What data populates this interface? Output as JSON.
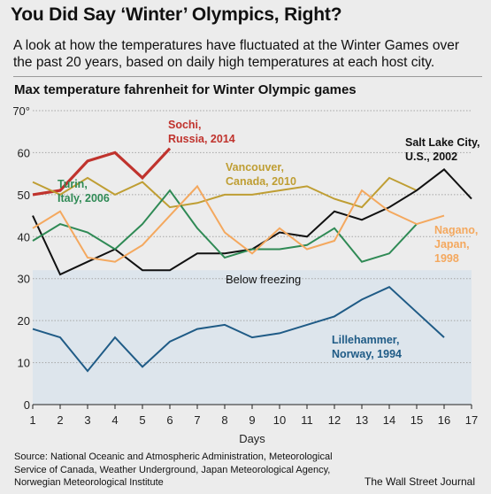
{
  "title": "You Did Say ‘Winter’ Olympics, Right?",
  "subtitle": "A look at how the temperatures have fluctuated at the Winter Games over the past 20 years, based on daily high temperatures at each host city.",
  "source": "Source: National Oceanic and Atmospheric Administration, Meteorological Service of Canada, Weather Underground, Japan Meteorological Agency, Norwegian Meteorological Institute",
  "credit": "The Wall Street Journal",
  "chart_data": {
    "type": "line",
    "title": "Max temperature fahrenheit for Winter Olympic games",
    "xlabel": "Days",
    "ylabel": "",
    "xlim": [
      1,
      17
    ],
    "ylim": [
      0,
      70
    ],
    "x_ticks": [
      "1",
      "2",
      "3",
      "4",
      "5",
      "6",
      "7",
      "8",
      "9",
      "10",
      "11",
      "12",
      "13",
      "14",
      "15",
      "16",
      "17"
    ],
    "y_ticks": [
      "0",
      "10",
      "20",
      "30",
      "40",
      "50",
      "60",
      "70°"
    ],
    "grid": true,
    "legend": "none",
    "band": {
      "label": "Below freezing",
      "from": 0,
      "to": 32,
      "color": "#dde5ec"
    },
    "series": [
      {
        "name": "Sochi, Russia, 2014",
        "label_lines": [
          "Sochi,",
          "Russia, 2014"
        ],
        "color": "#c0332d",
        "width": 3.2,
        "x": [
          1,
          2,
          3,
          4,
          5,
          6
        ],
        "values": [
          50,
          51,
          58,
          60,
          54,
          61
        ]
      },
      {
        "name": "Vancouver, Canada, 2010",
        "label_lines": [
          "Vancouver,",
          "Canada, 2010"
        ],
        "color": "#bf9e33",
        "width": 2,
        "x": [
          1,
          2,
          3,
          4,
          5,
          6,
          7,
          8,
          9,
          10,
          11,
          12,
          13,
          14,
          15
        ],
        "values": [
          53,
          50,
          54,
          50,
          53,
          47,
          48,
          50,
          50,
          51,
          52,
          49,
          47,
          54,
          51
        ]
      },
      {
        "name": "Salt Lake City, U.S., 2002",
        "label_lines": [
          "Salt Lake City,",
          "U.S., 2002"
        ],
        "color": "#111111",
        "width": 2,
        "x": [
          1,
          2,
          3,
          4,
          5,
          6,
          7,
          8,
          9,
          10,
          11,
          12,
          13,
          14,
          15,
          16,
          17
        ],
        "values": [
          45,
          31,
          34,
          37,
          32,
          32,
          36,
          36,
          37,
          41,
          40,
          46,
          44,
          47,
          51,
          56,
          49
        ]
      },
      {
        "name": "Turin, Italy, 2006",
        "label_lines": [
          "Turin,",
          "Italy, 2006"
        ],
        "color": "#2f8a55",
        "width": 2,
        "x": [
          1,
          2,
          3,
          4,
          5,
          6,
          7,
          8,
          9,
          10,
          11,
          12,
          13,
          14,
          15
        ],
        "values": [
          39,
          43,
          41,
          37,
          43,
          51,
          42,
          35,
          37,
          37,
          38,
          42,
          34,
          36,
          43
        ]
      },
      {
        "name": "Nagano, Japan, 1998",
        "label_lines": [
          "Nagano,",
          "Japan,",
          "1998"
        ],
        "color": "#f4a85e",
        "width": 2,
        "x": [
          1,
          2,
          3,
          4,
          5,
          6,
          7,
          8,
          9,
          10,
          11,
          12,
          13,
          14,
          15,
          16
        ],
        "values": [
          42,
          46,
          35,
          34,
          38,
          45,
          52,
          41,
          36,
          42,
          37,
          39,
          51,
          46,
          43,
          45
        ]
      },
      {
        "name": "Lillehammer, Norway, 1994",
        "label_lines": [
          "Lillehammer,",
          "Norway, 1994"
        ],
        "color": "#1f5b86",
        "width": 2,
        "x": [
          1,
          2,
          3,
          4,
          5,
          6,
          7,
          8,
          9,
          10,
          11,
          12,
          13,
          14,
          15,
          16
        ],
        "values": [
          18,
          16,
          8,
          16,
          9,
          15,
          18,
          19,
          16,
          17,
          19,
          21,
          25,
          28,
          22,
          16
        ]
      }
    ]
  }
}
